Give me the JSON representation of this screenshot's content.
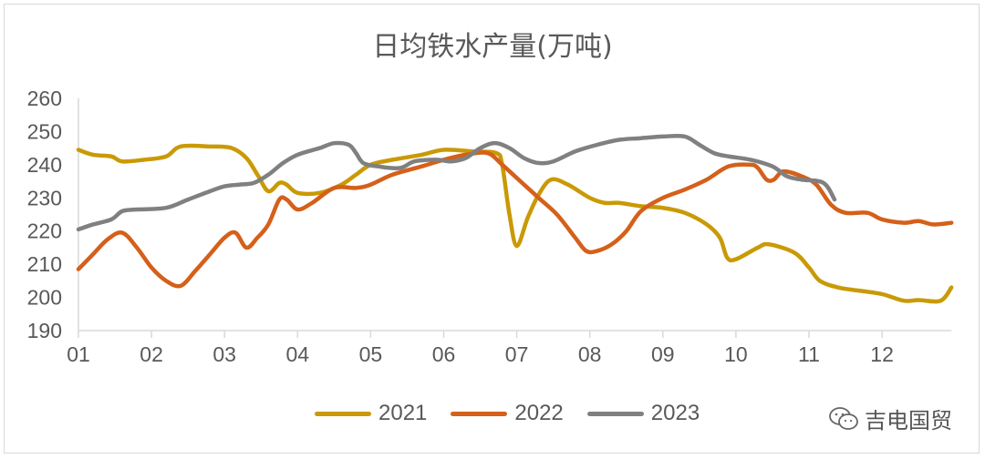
{
  "chart_data": {
    "type": "line",
    "title": "日均铁水产量(万吨)",
    "xlabel": "",
    "ylabel": "",
    "ylim": [
      190,
      260
    ],
    "yticks": [
      190,
      200,
      210,
      220,
      230,
      240,
      250,
      260
    ],
    "xlim": [
      1,
      12.95
    ],
    "xtick_labels": [
      "01",
      "02",
      "03",
      "04",
      "05",
      "06",
      "07",
      "08",
      "09",
      "10",
      "11",
      "12"
    ],
    "grid": false,
    "legend": "bottom",
    "series": [
      {
        "name": "2021",
        "color": "#C99A06",
        "points": [
          [
            1.0,
            244.5
          ],
          [
            1.2,
            243
          ],
          [
            1.45,
            242.5
          ],
          [
            1.6,
            241
          ],
          [
            1.9,
            241.5
          ],
          [
            2.2,
            242.5
          ],
          [
            2.4,
            245.5
          ],
          [
            2.8,
            245.5
          ],
          [
            3.1,
            245
          ],
          [
            3.3,
            242
          ],
          [
            3.45,
            237
          ],
          [
            3.6,
            232
          ],
          [
            3.75,
            234.5
          ],
          [
            3.85,
            234
          ],
          [
            4.0,
            231.5
          ],
          [
            4.3,
            231.5
          ],
          [
            4.6,
            234
          ],
          [
            4.8,
            237
          ],
          [
            5.0,
            240
          ],
          [
            5.3,
            241.5
          ],
          [
            5.7,
            243
          ],
          [
            6.0,
            244.5
          ],
          [
            6.4,
            244
          ],
          [
            6.72,
            243.5
          ],
          [
            6.8,
            240
          ],
          [
            6.9,
            225
          ],
          [
            7.0,
            215.5
          ],
          [
            7.15,
            224
          ],
          [
            7.3,
            231
          ],
          [
            7.47,
            235.5
          ],
          [
            7.7,
            234
          ],
          [
            8.0,
            230
          ],
          [
            8.2,
            228.5
          ],
          [
            8.4,
            228.5
          ],
          [
            8.7,
            227.5
          ],
          [
            9.0,
            227
          ],
          [
            9.3,
            225.5
          ],
          [
            9.6,
            222
          ],
          [
            9.78,
            218
          ],
          [
            9.88,
            212
          ],
          [
            10.0,
            211.5
          ],
          [
            10.3,
            215
          ],
          [
            10.45,
            216
          ],
          [
            10.8,
            213.5
          ],
          [
            11.0,
            209
          ],
          [
            11.15,
            205
          ],
          [
            11.4,
            203
          ],
          [
            11.7,
            202
          ],
          [
            12.0,
            201
          ],
          [
            12.3,
            199
          ],
          [
            12.5,
            199.2
          ],
          [
            12.8,
            199
          ],
          [
            12.95,
            203
          ]
        ]
      },
      {
        "name": "2022",
        "color": "#D4601A",
        "points": [
          [
            1.0,
            208.5
          ],
          [
            1.2,
            213
          ],
          [
            1.4,
            217.5
          ],
          [
            1.6,
            219.5
          ],
          [
            1.8,
            215
          ],
          [
            2.0,
            209
          ],
          [
            2.2,
            205
          ],
          [
            2.4,
            203.5
          ],
          [
            2.6,
            208
          ],
          [
            2.8,
            213
          ],
          [
            3.0,
            218
          ],
          [
            3.15,
            219.5
          ],
          [
            3.3,
            215
          ],
          [
            3.45,
            218
          ],
          [
            3.6,
            222
          ],
          [
            3.75,
            229.5
          ],
          [
            3.85,
            229.5
          ],
          [
            4.0,
            226.5
          ],
          [
            4.2,
            228.5
          ],
          [
            4.5,
            233
          ],
          [
            4.8,
            233
          ],
          [
            5.0,
            234
          ],
          [
            5.3,
            237
          ],
          [
            5.7,
            239.5
          ],
          [
            6.0,
            241.5
          ],
          [
            6.3,
            243
          ],
          [
            6.6,
            243.5
          ],
          [
            6.8,
            240
          ],
          [
            7.0,
            236
          ],
          [
            7.3,
            230
          ],
          [
            7.55,
            225
          ],
          [
            7.8,
            218
          ],
          [
            7.95,
            214
          ],
          [
            8.1,
            214
          ],
          [
            8.3,
            216
          ],
          [
            8.5,
            220
          ],
          [
            8.7,
            226
          ],
          [
            9.0,
            230
          ],
          [
            9.3,
            232.5
          ],
          [
            9.6,
            235.5
          ],
          [
            9.9,
            239.5
          ],
          [
            10.2,
            240
          ],
          [
            10.3,
            239
          ],
          [
            10.42,
            235.5
          ],
          [
            10.52,
            235.5
          ],
          [
            10.65,
            238
          ],
          [
            10.9,
            236.5
          ],
          [
            11.1,
            234
          ],
          [
            11.3,
            228
          ],
          [
            11.5,
            225.5
          ],
          [
            11.8,
            225.5
          ],
          [
            12.0,
            223.5
          ],
          [
            12.3,
            222.5
          ],
          [
            12.5,
            223
          ],
          [
            12.7,
            222
          ],
          [
            12.95,
            222.5
          ]
        ]
      },
      {
        "name": "2023",
        "color": "#808080",
        "points": [
          [
            1.0,
            220.5
          ],
          [
            1.2,
            222
          ],
          [
            1.45,
            223.5
          ],
          [
            1.6,
            226
          ],
          [
            1.8,
            226.5
          ],
          [
            2.2,
            227
          ],
          [
            2.5,
            229.5
          ],
          [
            2.8,
            232
          ],
          [
            3.0,
            233.5
          ],
          [
            3.2,
            234
          ],
          [
            3.4,
            234.5
          ],
          [
            3.6,
            237
          ],
          [
            3.8,
            240.5
          ],
          [
            4.0,
            243
          ],
          [
            4.3,
            245
          ],
          [
            4.5,
            246.5
          ],
          [
            4.7,
            246
          ],
          [
            4.8,
            243.5
          ],
          [
            4.9,
            240.5
          ],
          [
            5.1,
            239.5
          ],
          [
            5.4,
            239
          ],
          [
            5.6,
            241
          ],
          [
            5.9,
            241.5
          ],
          [
            6.1,
            241
          ],
          [
            6.3,
            242
          ],
          [
            6.5,
            245
          ],
          [
            6.7,
            246.5
          ],
          [
            6.9,
            245
          ],
          [
            7.1,
            242
          ],
          [
            7.3,
            240.5
          ],
          [
            7.5,
            241
          ],
          [
            7.8,
            244
          ],
          [
            8.1,
            246
          ],
          [
            8.4,
            247.5
          ],
          [
            8.7,
            248
          ],
          [
            9.0,
            248.5
          ],
          [
            9.3,
            248.5
          ],
          [
            9.5,
            246
          ],
          [
            9.7,
            243.5
          ],
          [
            9.9,
            242.5
          ],
          [
            10.2,
            241.5
          ],
          [
            10.5,
            239.5
          ],
          [
            10.7,
            236.5
          ],
          [
            10.9,
            235.5
          ],
          [
            11.2,
            234.5
          ],
          [
            11.35,
            229.5
          ]
        ]
      }
    ]
  },
  "watermark": {
    "text": "吉电国贸",
    "icon": "wechat-icon"
  }
}
